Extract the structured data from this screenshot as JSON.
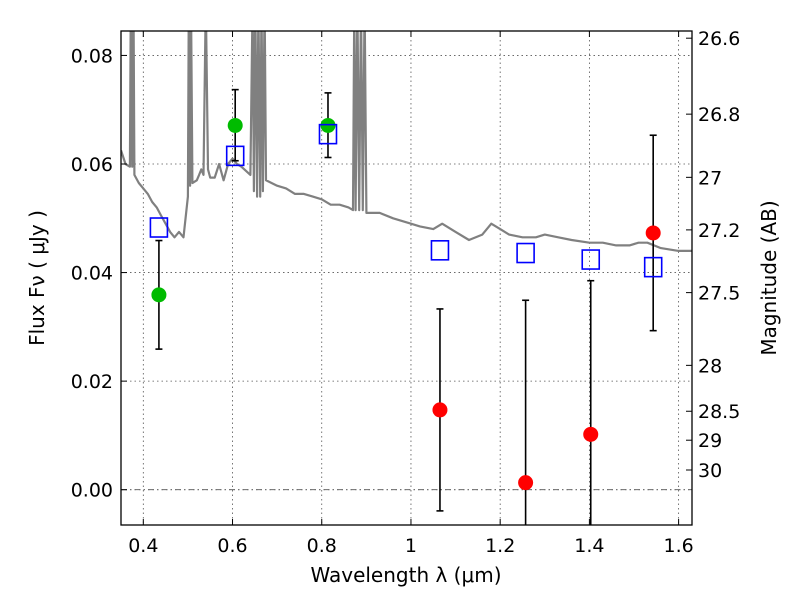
{
  "chart_data": {
    "type": "scatter",
    "xlabel": "Wavelength  λ (μm)",
    "ylabel": "Flux  Fν  ( μJy )",
    "y2label": "Magnitude (AB)",
    "xlim": [
      0.35,
      1.63
    ],
    "ylim": [
      -0.0065,
      0.0845
    ],
    "x_ticks": [
      0.4,
      0.6,
      0.8,
      1.0,
      1.2,
      1.4,
      1.6
    ],
    "x_tick_labels": [
      "0.4",
      "0.6",
      "0.8",
      "1",
      "1.2",
      "1.4",
      "1.6"
    ],
    "y_ticks": [
      0.0,
      0.02,
      0.04,
      0.06,
      0.08
    ],
    "y_tick_labels": [
      "0.00",
      "0.02",
      "0.04",
      "0.06",
      "0.08"
    ],
    "mag_ticks": [
      26.6,
      26.8,
      27.0,
      27.2,
      27.5,
      28.0,
      28.5,
      29.0,
      30.0
    ],
    "mag_tick_labels": [
      "26.6",
      "26.8",
      "27",
      "27.2",
      "27.5",
      "28",
      "28.5",
      "29",
      "30"
    ],
    "grid": true,
    "colors": {
      "model": "#808080",
      "model_points": "#0000ff",
      "detections": "#00bb00",
      "nondetections": "#ff0000",
      "errorbars": "#000000",
      "zero_line": "#555555"
    },
    "series": [
      {
        "name": "observed_green",
        "marker": "circle",
        "x": [
          0.435,
          0.606,
          0.814
        ],
        "y": [
          0.0359,
          0.0671,
          0.0671
        ],
        "yerr_low": [
          0.0259,
          0.0606,
          0.0612
        ],
        "yerr_high": [
          0.0459,
          0.0737,
          0.0731
        ]
      },
      {
        "name": "observed_red",
        "marker": "circle",
        "x": [
          1.065,
          1.257,
          1.403,
          1.543
        ],
        "y": [
          0.0147,
          0.0013,
          0.0102,
          0.0473
        ],
        "yerr_low": [
          -0.0039,
          -0.0065,
          -0.0065,
          0.0293
        ],
        "yerr_high": [
          0.0333,
          0.0349,
          0.0385,
          0.0653
        ]
      },
      {
        "name": "model_bandpass",
        "marker": "square",
        "x": [
          0.435,
          0.606,
          0.814,
          1.065,
          1.257,
          1.403,
          1.543
        ],
        "y": [
          0.0483,
          0.0615,
          0.0655,
          0.0441,
          0.0436,
          0.0424,
          0.041
        ]
      }
    ],
    "model_spectrum": {
      "name": "model_sed",
      "x": [
        0.35,
        0.36,
        0.37,
        0.372,
        0.375,
        0.378,
        0.38,
        0.39,
        0.4,
        0.41,
        0.42,
        0.43,
        0.44,
        0.45,
        0.46,
        0.47,
        0.48,
        0.49,
        0.5,
        0.502,
        0.505,
        0.507,
        0.51,
        0.52,
        0.525,
        0.53,
        0.535,
        0.54,
        0.545,
        0.55,
        0.56,
        0.57,
        0.58,
        0.59,
        0.6,
        0.61,
        0.62,
        0.64,
        0.645,
        0.648,
        0.651,
        0.655,
        0.658,
        0.662,
        0.665,
        0.668,
        0.672,
        0.675,
        0.7,
        0.72,
        0.74,
        0.76,
        0.78,
        0.8,
        0.82,
        0.84,
        0.86,
        0.87,
        0.873,
        0.876,
        0.88,
        0.884,
        0.888,
        0.892,
        0.896,
        0.9,
        0.93,
        0.96,
        1.0,
        1.02,
        1.05,
        1.07,
        1.1,
        1.13,
        1.16,
        1.18,
        1.2,
        1.22,
        1.25,
        1.28,
        1.3,
        1.33,
        1.36,
        1.4,
        1.43,
        1.46,
        1.49,
        1.51,
        1.53,
        1.56,
        1.6,
        1.63
      ],
      "y": [
        0.0625,
        0.06,
        0.0595,
        0.09,
        0.0595,
        0.09,
        0.058,
        0.0565,
        0.0555,
        0.0545,
        0.053,
        0.052,
        0.0505,
        0.049,
        0.0475,
        0.0465,
        0.0475,
        0.0465,
        0.054,
        0.09,
        0.056,
        0.09,
        0.0565,
        0.057,
        0.058,
        0.059,
        0.058,
        0.09,
        0.059,
        0.0575,
        0.0575,
        0.06,
        0.057,
        0.06,
        0.061,
        0.06,
        0.0595,
        0.058,
        0.09,
        0.055,
        0.09,
        0.054,
        0.09,
        0.054,
        0.09,
        0.055,
        0.09,
        0.057,
        0.056,
        0.0555,
        0.0545,
        0.0545,
        0.054,
        0.0535,
        0.0525,
        0.0525,
        0.052,
        0.0515,
        0.09,
        0.0515,
        0.09,
        0.0515,
        0.09,
        0.0515,
        0.09,
        0.051,
        0.051,
        0.05,
        0.049,
        0.0485,
        0.048,
        0.049,
        0.0475,
        0.046,
        0.047,
        0.049,
        0.048,
        0.047,
        0.0465,
        0.0465,
        0.047,
        0.0465,
        0.046,
        0.0455,
        0.0455,
        0.045,
        0.045,
        0.0455,
        0.0455,
        0.0445,
        0.044,
        0.044
      ]
    }
  }
}
